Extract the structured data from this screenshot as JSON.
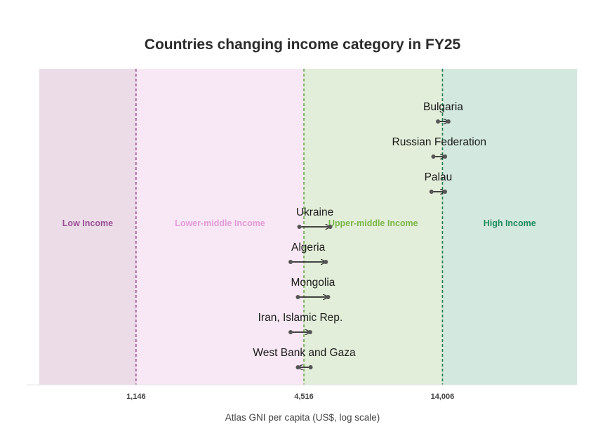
{
  "chart_data": {
    "type": "arrow-dot",
    "title": "Countries changing income category in FY25",
    "xlabel": "Atlas GNI per capita (US$, log scale)",
    "xscale": "log",
    "xlim": [
      520,
      42000
    ],
    "thresholds": [
      {
        "value": 1146,
        "label": "1,146",
        "color": "#9b4f96"
      },
      {
        "value": 4516,
        "label": "4,516",
        "color": "#6aa84f"
      },
      {
        "value": 14006,
        "label": "14,006",
        "color": "#1f7a4d"
      }
    ],
    "bands": [
      {
        "label": "Low Income",
        "from": 520,
        "to": 1146,
        "fill": "#ebdce8",
        "text_color": "#9b4f96"
      },
      {
        "label": "Lower-middle Income",
        "from": 1146,
        "to": 4516,
        "fill": "#f8e8f5",
        "text_color": "#e39ad8"
      },
      {
        "label": "Upper-middle Income",
        "from": 4516,
        "to": 14006,
        "fill": "#e2eed9",
        "text_color": "#7ab648"
      },
      {
        "label": "High Income",
        "from": 14006,
        "to": 42000,
        "fill": "#d3e8df",
        "text_color": "#1f8a5a"
      }
    ],
    "countries": [
      {
        "name": "Bulgaria",
        "from": 13500,
        "to": 14700
      },
      {
        "name": "Russian Federation",
        "from": 13000,
        "to": 14300
      },
      {
        "name": "Palau",
        "from": 12800,
        "to": 14300
      },
      {
        "name": "Ukraine",
        "from": 4350,
        "to": 5600
      },
      {
        "name": "Algeria",
        "from": 4050,
        "to": 5400
      },
      {
        "name": "Mongolia",
        "from": 4300,
        "to": 5500
      },
      {
        "name": "Iran, Islamic Rep.",
        "from": 4050,
        "to": 4750
      },
      {
        "name": "West Bank and Gaza",
        "from": 4770,
        "to": 4300
      }
    ]
  }
}
